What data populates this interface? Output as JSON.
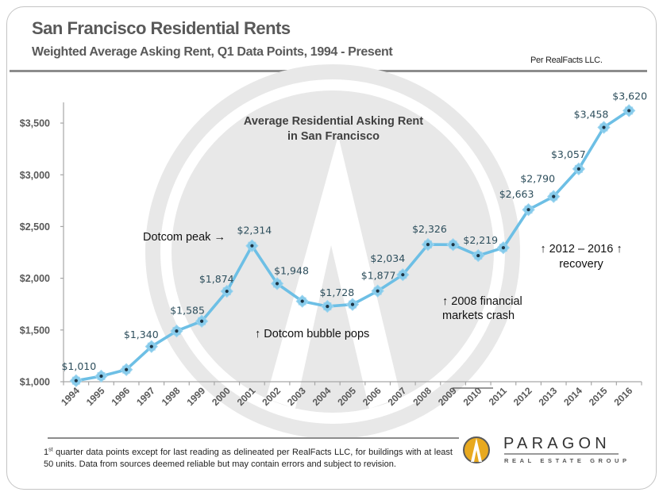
{
  "header": {
    "title": "San Francisco Residential Rents",
    "subtitle": "Weighted Average Asking Rent, Q1 Data Points, 1994 - Present",
    "source": "Per RealFacts LLC."
  },
  "chart_data": {
    "type": "line",
    "title_lines": [
      "Average Residential Asking Rent",
      "in San Francisco"
    ],
    "xlabel": "",
    "ylabel": "",
    "categories": [
      "1994",
      "1995",
      "1996",
      "1997",
      "1998",
      "1999",
      "2000",
      "2001",
      "2002",
      "2003",
      "2004",
      "2005",
      "2006",
      "2007",
      "2008",
      "2009",
      "2010",
      "2011",
      "2012",
      "2013",
      "2014",
      "2015",
      "2016"
    ],
    "series": [
      {
        "name": "Average Residential Asking Rent",
        "values": [
          1010,
          1054,
          1117,
          1340,
          1490,
          1585,
          1874,
          2314,
          1948,
          1778,
          1728,
          1747,
          1877,
          2034,
          2326,
          2325,
          2219,
          2295,
          2663,
          2790,
          3057,
          3458,
          3620
        ]
      }
    ],
    "point_labels": [
      "$1,010",
      null,
      null,
      "$1,340",
      null,
      "$1,585",
      "$1,874",
      "$2,314",
      "$1,948",
      null,
      "$1,728",
      null,
      "$1,877",
      "$2,034",
      "$2,326",
      null,
      "$2,219",
      null,
      "$2,663",
      "$2,790",
      "$3,057",
      "$3,458",
      "$3,620"
    ],
    "yticks": [
      1000,
      1500,
      2000,
      2500,
      3000,
      3500
    ],
    "ytick_labels": [
      "$1,000",
      "$1,500",
      "$2,000",
      "$2,500",
      "$3,000",
      "$3,500"
    ],
    "ylim": [
      1000,
      3700
    ],
    "grid": false,
    "legend": "none",
    "annotations": [
      {
        "lines": [
          "Dotcom peak →"
        ]
      },
      {
        "lines": [
          "↑ Dotcom bubble pops"
        ]
      },
      {
        "lines": [
          "↑ 2008 financial",
          "markets crash"
        ]
      },
      {
        "lines": [
          "↑ 2012 – 2016 ↑",
          "recovery"
        ]
      }
    ],
    "colors": {
      "line": "#6DBFE5",
      "marker": "#86CBEB",
      "marker_center": "#1E3444",
      "label": "#2D4E5C"
    }
  },
  "footnote": {
    "ordinal": "1",
    "ordinal_suffix": "st",
    "text": " quarter data points except for last reading as delineated per RealFacts LLC, for buildings with at least 50 units. Data from sources deemed reliable but may contain errors and subject to revision."
  },
  "logo": {
    "name": "PARAGON",
    "tagline": "REAL ESTATE GROUP",
    "color": "#E8A91F"
  }
}
